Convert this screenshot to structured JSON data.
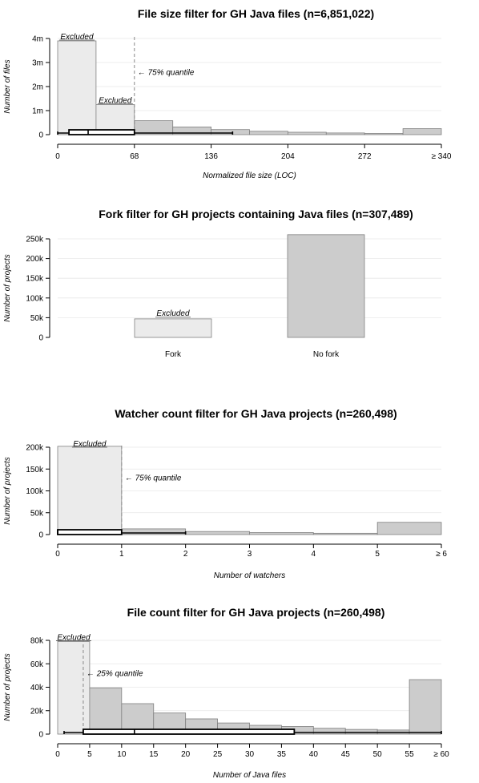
{
  "chart_data": [
    {
      "type": "bar",
      "title": "File size filter for GH Java files (n=6,851,022)",
      "xlabel": "Normalized file size (LOC)",
      "ylabel": "Number of files",
      "xlim": [
        0,
        340
      ],
      "ylim": [
        0,
        4000000
      ],
      "xticks": [
        0,
        68,
        136,
        204,
        272,
        340
      ],
      "xtick_labels": [
        "0",
        "68",
        "136",
        "204",
        "272",
        "≥ 340"
      ],
      "yticks": [
        0,
        1000000,
        2000000,
        3000000,
        4000000
      ],
      "ytick_labels": [
        "0",
        "1m",
        "2m",
        "3m",
        "4m"
      ],
      "bins": [
        {
          "x0": 0,
          "x1": 34,
          "value": 3900000,
          "excluded": true,
          "label": "Excluded"
        },
        {
          "x0": 34,
          "x1": 68,
          "value": 1250000,
          "excluded": true,
          "label": "Excluded"
        },
        {
          "x0": 68,
          "x1": 102,
          "value": 580000
        },
        {
          "x0": 102,
          "x1": 136,
          "value": 320000
        },
        {
          "x0": 136,
          "x1": 170,
          "value": 210000
        },
        {
          "x0": 170,
          "x1": 204,
          "value": 140000
        },
        {
          "x0": 204,
          "x1": 238,
          "value": 100000
        },
        {
          "x0": 238,
          "x1": 272,
          "value": 70000
        },
        {
          "x0": 272,
          "x1": 306,
          "value": 50000
        },
        {
          "x0": 306,
          "x1": 340,
          "value": 250000
        }
      ],
      "quantile": {
        "x": 68,
        "label": "← 75% quantile"
      },
      "boxplot": {
        "min": 0,
        "q1": 10,
        "median": 27,
        "q3": 68,
        "max": 155,
        "y": 0
      }
    },
    {
      "type": "bar",
      "title": "Fork filter for GH projects containing Java files (n=307,489)",
      "xlabel": "",
      "ylabel": "Number of projects",
      "ylim": [
        0,
        250000
      ],
      "yticks": [
        0,
        50000,
        100000,
        150000,
        200000,
        250000
      ],
      "ytick_labels": [
        "0",
        "50k",
        "100k",
        "150k",
        "200k",
        "250k"
      ],
      "categories": [
        "Fork",
        "No fork"
      ],
      "values": [
        46991,
        260498
      ],
      "excluded": [
        true,
        false
      ],
      "bar_labels": [
        "Excluded",
        ""
      ]
    },
    {
      "type": "bar",
      "title": "Watcher count filter for GH Java projects (n=260,498)",
      "xlabel": "Number of watchers",
      "ylabel": "Number of projects",
      "xlim": [
        0,
        6
      ],
      "ylim": [
        0,
        200000
      ],
      "xticks": [
        0,
        1,
        2,
        3,
        4,
        5,
        6
      ],
      "xtick_labels": [
        "0",
        "1",
        "2",
        "3",
        "4",
        "5",
        "≥ 6"
      ],
      "yticks": [
        0,
        50000,
        100000,
        150000,
        200000
      ],
      "ytick_labels": [
        "0",
        "50k",
        "100k",
        "150k",
        "200k"
      ],
      "bins": [
        {
          "x0": 0,
          "x1": 1,
          "value": 202000,
          "excluded": true,
          "label": "Excluded"
        },
        {
          "x0": 1,
          "x1": 2,
          "value": 13000
        },
        {
          "x0": 2,
          "x1": 3,
          "value": 7000
        },
        {
          "x0": 3,
          "x1": 4,
          "value": 4500
        },
        {
          "x0": 4,
          "x1": 5,
          "value": 3000
        },
        {
          "x0": 5,
          "x1": 6,
          "value": 28000
        }
      ],
      "quantile": {
        "x": 1,
        "label": "← 75% quantile"
      },
      "boxplot": {
        "min": 0,
        "q1": 0,
        "median": 0,
        "q3": 1,
        "max": 2,
        "y": 0
      }
    },
    {
      "type": "bar",
      "title": "File count filter for GH Java projects (n=260,498)",
      "xlabel": "Number of Java files",
      "ylabel": "Number of projects",
      "xlim": [
        0,
        60
      ],
      "ylim": [
        0,
        80000
      ],
      "xticks": [
        0,
        5,
        10,
        15,
        20,
        25,
        30,
        35,
        40,
        45,
        50,
        55,
        60
      ],
      "xtick_labels": [
        "0",
        "5",
        "10",
        "15",
        "20",
        "25",
        "30",
        "35",
        "40",
        "45",
        "50",
        "55",
        "≥ 60"
      ],
      "yticks": [
        0,
        20000,
        40000,
        60000,
        80000
      ],
      "ytick_labels": [
        "0",
        "20k",
        "40k",
        "60k",
        "80k"
      ],
      "bins": [
        {
          "x0": 0,
          "x1": 5,
          "value": 79000,
          "excluded": true,
          "label": "Excluded"
        },
        {
          "x0": 5,
          "x1": 10,
          "value": 39500
        },
        {
          "x0": 10,
          "x1": 15,
          "value": 26000
        },
        {
          "x0": 15,
          "x1": 20,
          "value": 18000
        },
        {
          "x0": 20,
          "x1": 25,
          "value": 13000
        },
        {
          "x0": 25,
          "x1": 30,
          "value": 9500
        },
        {
          "x0": 30,
          "x1": 35,
          "value": 7500
        },
        {
          "x0": 35,
          "x1": 40,
          "value": 6500
        },
        {
          "x0": 40,
          "x1": 45,
          "value": 5000
        },
        {
          "x0": 45,
          "x1": 50,
          "value": 4000
        },
        {
          "x0": 50,
          "x1": 55,
          "value": 3500
        },
        {
          "x0": 55,
          "x1": 60,
          "value": 46500
        }
      ],
      "quantile": {
        "x": 4,
        "label": "← 25% quantile"
      },
      "boxplot": {
        "min": 1,
        "q1": 4,
        "median": 12,
        "q3": 37,
        "max": 60,
        "y": 0
      }
    }
  ]
}
